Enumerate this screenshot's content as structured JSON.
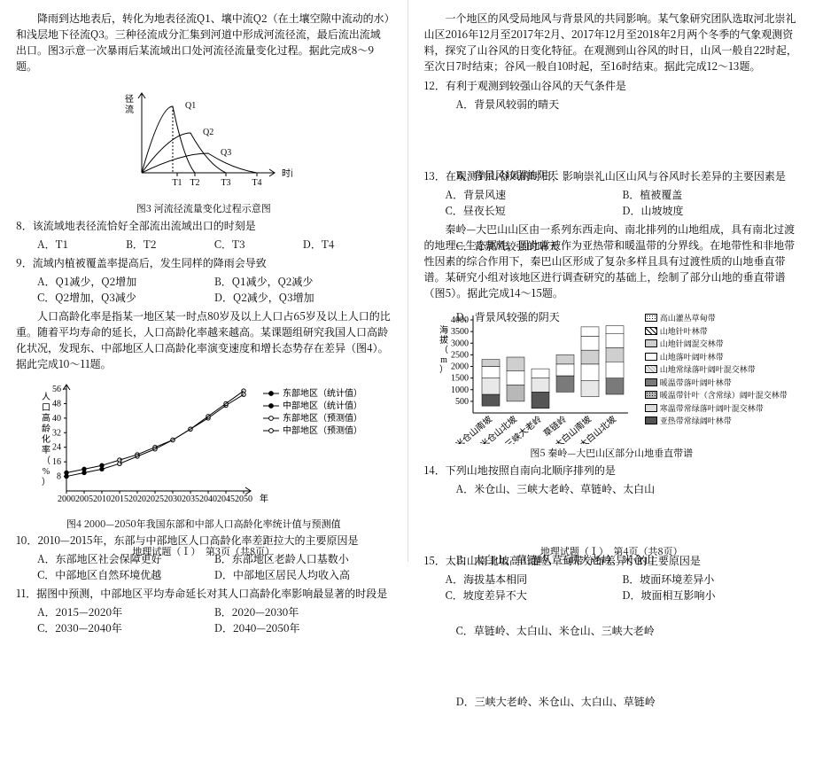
{
  "left": {
    "intro1": "降雨到达地表后，转化为地表径流Q1、壤中流Q2（在土壤空隙中流动的水）和浅层地下径流Q3。三种径流成分汇集到河道中形成河流径流，最后流出流域出口。图3示意一次暴雨后某流域出口处河流径流量变化过程。据此完成8～9题。",
    "fig3": {
      "caption": "图3  河流径流量变化过程示意图",
      "ylabel_top": "径",
      "ylabel_bot": "流",
      "xlabel": "时间",
      "q1": "Q1",
      "q2": "Q2",
      "q3": "Q3",
      "t1": "T1",
      "t2": "T2",
      "t3": "T3",
      "t4": "T4",
      "color": "#000"
    },
    "q8": {
      "stem": "8．该流域地表径流恰好全部流出流域出口的时刻是",
      "opts": [
        "A．T1",
        "B．T2",
        "C．T3",
        "D．T4"
      ]
    },
    "q9": {
      "stem": "9．流域内植被覆盖率提高后，发生同样的降雨会导致",
      "opts": [
        "A．Q1减少，Q2增加",
        "B．Q1减少，Q2减少",
        "C．Q2增加，Q3减少",
        "D．Q2减少，Q3增加"
      ]
    },
    "intro2": "人口高龄化率是指某一地区某一时点80岁及以上人口占65岁及以上人口的比重。随着平均寿命的延长，人口高龄化率越来越高。某课题组研究我国人口高龄化状况，发现东、中部地区人口高龄化率演变速度和增长态势存在差异（图4）。据此完成10～11题。",
    "fig4": {
      "caption": "图4  2000—2050年我国东部和中部人口高龄化率统计值与预测值",
      "ylabel": "人口高龄化率（%）",
      "xlabel_years": [
        "2000",
        "2005",
        "2010",
        "2015",
        "2020",
        "2025",
        "2030",
        "2035",
        "2040",
        "2045",
        "2050",
        "年"
      ],
      "legend": [
        "东部地区（统计值）",
        "中部地区（统计值）",
        "东部地区（预测值）",
        "中部地区（预测值）"
      ],
      "yticks": [
        8,
        16,
        24,
        32,
        40,
        48,
        56
      ],
      "series": {
        "east_stat": [
          [
            0,
            10
          ],
          [
            1,
            12
          ],
          [
            2,
            14
          ],
          [
            3,
            17
          ]
        ],
        "mid_stat": [
          [
            0,
            8
          ],
          [
            1,
            10
          ],
          [
            2,
            12
          ],
          [
            3,
            15
          ]
        ],
        "east_pred": [
          [
            3,
            17
          ],
          [
            4,
            20
          ],
          [
            5,
            24
          ],
          [
            6,
            28
          ],
          [
            7,
            34
          ],
          [
            8,
            40
          ],
          [
            9,
            47
          ],
          [
            10,
            53
          ]
        ],
        "mid_pred": [
          [
            3,
            15
          ],
          [
            4,
            19
          ],
          [
            5,
            23
          ],
          [
            6,
            28
          ],
          [
            7,
            34
          ],
          [
            8,
            41
          ],
          [
            9,
            48
          ],
          [
            10,
            55
          ]
        ]
      },
      "color": "#000",
      "dot_r": 2.2
    },
    "q10": {
      "stem": "10．2010—2015年，东部与中部地区人口高龄化率差距拉大的主要原因是",
      "opts": [
        "A．东部地区社会保障更好",
        "B．东部地区老龄人口基数小",
        "C．中部地区自然环境优越",
        "D．中部地区居民人均收入高"
      ]
    },
    "q11": {
      "stem": "11．据图中预测，中部地区平均寿命延长对其人口高龄化率影响最显著的时段是",
      "opts": [
        "A．2015—2020年",
        "B．2020—2030年",
        "C．2030—2040年",
        "D．2040—2050年"
      ]
    },
    "footer": "地理试题（Ⅰ）　第3页（共8页）"
  },
  "right": {
    "intro1": "一个地区的风受局地风与背景风的共同影响。某气象研究团队选取河北崇礼山区2016年12月至2017年2月、2017年12月至2018年2月两个冬季的气象观测资料，探究了山谷风的日变化特征。在观测到山谷风的时日，山风一般自22时起，至次日7时结束；谷风一般自10时起，至16时结束。据此完成12～13题。",
    "q12": {
      "stem": "12．有利于观测到较强山谷风的天气条件是",
      "opts": [
        "A．背景风较弱的晴天",
        "B．背景风较弱的阴天",
        "C．背景风较强的晴天",
        "D．背景风较强的阴天"
      ]
    },
    "q13": {
      "stem": "13．在观测到山谷风的时日，影响崇礼山区山风与谷风时长差异的主要因素是",
      "opts": [
        "A．背景风速",
        "B．植被覆盖",
        "C．昼夜长短",
        "D．山坡坡度"
      ]
    },
    "intro2": "秦岭—大巴山山区由一系列东西走向、南北排列的山地组成，具有南北过渡的地理—生态属性，因此常被作为亚热带和暖温带的分界线。在地带性和非地带性因素的综合作用下，秦巴山区形成了复杂多样且具有过渡性质的山地垂直带谱。某研究小组对该地区进行调查研究的基础上，绘制了部分山地的垂直带谱（图5）。据此完成14～15题。",
    "fig5": {
      "caption": "图5  秦岭—大巴山区部分山地垂直带谱",
      "ylabel": "海拔（m）",
      "yticks": [
        500,
        1000,
        1500,
        2000,
        2500,
        3000,
        3500,
        4000
      ],
      "mountains": [
        "米仓山南坡",
        "米仓山北坡",
        "三峡大老岭",
        "草链岭",
        "太白山南坡",
        "太白山北坡"
      ],
      "legend": [
        {
          "label": "高山灌丛草甸带",
          "fill": "#ffffff",
          "hatch": "dots"
        },
        {
          "label": "山地针叶林带",
          "fill": "#ffffff",
          "hatch": "slash"
        },
        {
          "label": "山地针阔混交林带",
          "fill": "#cfcfcf"
        },
        {
          "label": "山地落叶阔叶林带",
          "fill": "#ffffff"
        },
        {
          "label": "山地常绿落叶阔叶混交林带",
          "fill": "#e8e8e8",
          "hatch": "grid"
        },
        {
          "label": "暖温带落叶阔叶林带",
          "fill": "#7a7a7a"
        },
        {
          "label": "暖温带针叶（含常绿）阔叶混交林带",
          "fill": "#b8b8b8",
          "hatch": "dots"
        },
        {
          "label": "寒温带常绿落叶阔叶混交林带",
          "fill": "#dcdcdc"
        },
        {
          "label": "亚热带常绿阔叶林带",
          "fill": "#555555"
        }
      ],
      "bars": [
        {
          "bands": [
            [
              300,
              800,
              "#555"
            ],
            [
              800,
              1500,
              "#e8e8e8"
            ],
            [
              1500,
              2000,
              "#fff"
            ],
            [
              2000,
              2300,
              "#cfcfcf"
            ]
          ]
        },
        {
          "bands": [
            [
              500,
              1200,
              "#b8b8b8"
            ],
            [
              1200,
              1800,
              "#fff"
            ],
            [
              1800,
              2400,
              "#cfcfcf"
            ]
          ]
        },
        {
          "bands": [
            [
              200,
              900,
              "#555"
            ],
            [
              900,
              1500,
              "#e8e8e8"
            ],
            [
              1500,
              1900,
              "#fff"
            ]
          ]
        },
        {
          "bands": [
            [
              900,
              1600,
              "#7a7a7a"
            ],
            [
              1600,
              2100,
              "#fff"
            ],
            [
              2100,
              2500,
              "#cfcfcf"
            ]
          ]
        },
        {
          "bands": [
            [
              700,
              1400,
              "#e8e8e8"
            ],
            [
              1400,
              2100,
              "#fff"
            ],
            [
              2100,
              2700,
              "#cfcfcf"
            ],
            [
              2700,
              3300,
              "#fff"
            ],
            [
              3300,
              3700,
              "#fff"
            ]
          ]
        },
        {
          "bands": [
            [
              800,
              1500,
              "#7a7a7a"
            ],
            [
              1500,
              2200,
              "#fff"
            ],
            [
              2200,
              2800,
              "#cfcfcf"
            ],
            [
              2800,
              3400,
              "#fff"
            ],
            [
              3400,
              3750,
              "#fff"
            ]
          ]
        }
      ]
    },
    "q14": {
      "stem": "14．下列山地按照自南向北顺序排列的是",
      "opts": [
        "A．米仓山、三峡大老岭、草链岭、太白山",
        "B．太白山、草链岭、三峡大老岭、米仓山",
        "C．草链岭、太白山、米仓山、三峡大老岭",
        "D．三峡大老岭、米仓山、太白山、草链岭"
      ]
    },
    "q15": {
      "stem": "15．太白山南北坡高山灌丛草甸带分布差异小的主要原因是",
      "opts": [
        "A．海拔基本相同",
        "B．坡面环境差异小",
        "C．坡度差异不大",
        "D．坡面相互影响小"
      ]
    },
    "footer": "地理试题（Ⅰ）　第4页（共8页）"
  }
}
